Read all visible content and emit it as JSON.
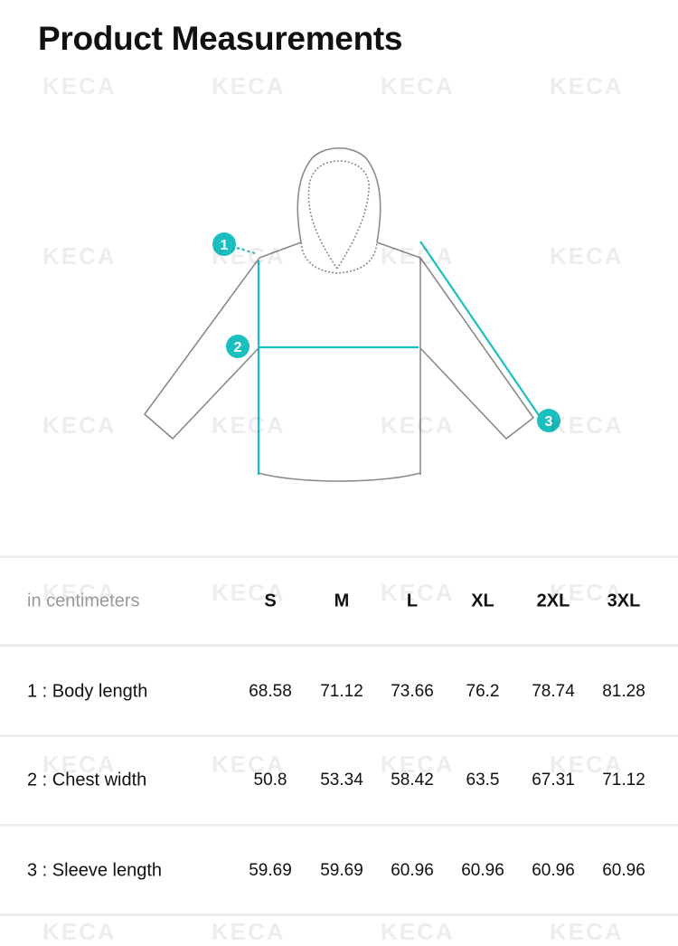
{
  "title": "Product Measurements",
  "watermark": "KECA",
  "accent_color": "#1bbfbf",
  "diagram": {
    "markers": [
      "1",
      "2",
      "3"
    ]
  },
  "table": {
    "unit_label": "in centimeters",
    "sizes": [
      "S",
      "M",
      "L",
      "XL",
      "2XL",
      "3XL"
    ],
    "rows": [
      {
        "label": "1 : Body length",
        "values": [
          "68.58",
          "71.12",
          "73.66",
          "76.2",
          "78.74",
          "81.28"
        ]
      },
      {
        "label": "2 : Chest width",
        "values": [
          "50.8",
          "53.34",
          "58.42",
          "63.5",
          "67.31",
          "71.12"
        ]
      },
      {
        "label": "3 : Sleeve length",
        "values": [
          "59.69",
          "59.69",
          "60.96",
          "60.96",
          "60.96",
          "60.96"
        ]
      }
    ]
  }
}
